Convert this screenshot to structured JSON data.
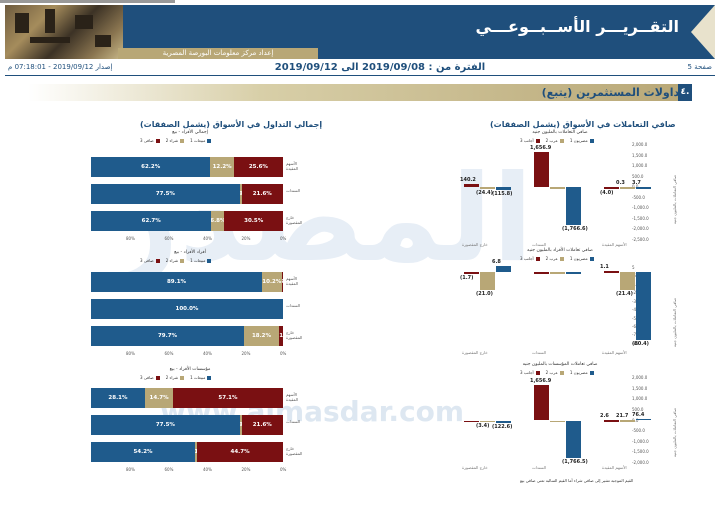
{
  "header": {
    "title": "التقــريـــر الأســبــوعـــي",
    "subtitle": "إعداد مركز معلومات البورصة المصرية",
    "page_label": "صفحة 5",
    "issue_label": "إصدار 2019/09/12 - 07:18:01 م",
    "period": "الفترة من : 2019/09/08 الى 2019/09/12"
  },
  "section": {
    "number": "٤.",
    "title": "تداولات المستثمرين  (يتبع)"
  },
  "watermark": {
    "large": "المصدر",
    "url": "www.almasdar.com"
  },
  "left": {
    "title": "إجمالي التداول في الأسواق (يشمل الصفقات)",
    "legend": [
      "صافى 3",
      "شراء 2",
      "مبيعات 1"
    ],
    "axis_ticks": [
      "0%",
      "20%",
      "40%",
      "60%",
      "80%"
    ],
    "row_labels": [
      "الأسهم المقيدة",
      "السندات",
      "خارج المقصورة"
    ],
    "chart_data": [
      {
        "type": "bar",
        "subtitle": "إجمالي الأفراد - بيع",
        "series_names": [
          "مبيعات 1",
          "شراء 2",
          "صافى 3"
        ],
        "rows": [
          {
            "label": "الأسهم المقيدة",
            "values": [
              62.2,
              12.2,
              25.6
            ]
          },
          {
            "label": "السندات",
            "values": [
              77.5,
              0.9,
              21.6
            ]
          },
          {
            "label": "خارج المقصورة",
            "values": [
              62.7,
              6.8,
              30.5
            ]
          }
        ]
      },
      {
        "type": "bar",
        "subtitle": "أفراد الأفراد - بيع",
        "series_names": [
          "مبيعات 1",
          "شراء 2",
          "صافى 3"
        ],
        "rows": [
          {
            "label": "الأسهم المقيدة",
            "values": [
              89.1,
              10.2,
              0.7
            ]
          },
          {
            "label": "السندات",
            "values": [
              100.0,
              0,
              0
            ]
          },
          {
            "label": "خارج المقصورة",
            "values": [
              79.7,
              18.2,
              2.1
            ]
          }
        ]
      },
      {
        "type": "bar",
        "subtitle": "مؤسسات الأفراد - بيع",
        "series_names": [
          "مبيعات 1",
          "شراء 2",
          "صافى 3"
        ],
        "rows": [
          {
            "label": "الأسهم المقيدة",
            "values": [
              28.1,
              14.7,
              57.1
            ]
          },
          {
            "label": "السندات",
            "values": [
              77.5,
              0.9,
              21.6
            ]
          },
          {
            "label": "خارج المقصورة",
            "values": [
              54.2,
              1.1,
              44.7
            ]
          }
        ]
      }
    ]
  },
  "right": {
    "title": "صافي التعاملات في الأسواق (يشمل الصفقات)",
    "legend": [
      "مصريون 1",
      "عرب 2",
      "أجانب 3"
    ],
    "x_labels": [
      "الأسهم المقيدة",
      "السندات",
      "خارج المقصورة"
    ],
    "y_label": "صافي التعاملات بالمليون جنيه",
    "note": "القيم الموجبة تشير إلى صافي شراء أما القيم السالبة تعني صافي بيع",
    "chart_data": [
      {
        "type": "bar",
        "subtitle": "صافي التعاملات بالمليون جنيه",
        "categories": [
          "خارج المقصورة",
          "السندات",
          "الأسهم المقيدة"
        ],
        "series": [
          {
            "name": "مصريون 1",
            "values": [
              -115.8,
              -1766.6,
              3.7
            ]
          },
          {
            "name": "عرب 2",
            "values": [
              -24.4,
              0,
              0.3
            ]
          },
          {
            "name": "أجانب 3",
            "values": [
              140.2,
              1656.9,
              -4.0
            ]
          }
        ],
        "ylim": [
          -2500,
          2000
        ],
        "yticks": [
          2000,
          1500,
          1000,
          500,
          0,
          -500,
          -1000,
          -1500,
          -2000,
          -2500
        ]
      },
      {
        "type": "bar",
        "subtitle": "صافي تعاملات الأفراد بالمليون جنيه",
        "categories": [
          "خارج المقصورة",
          "السندات",
          "الأسهم المقيدة"
        ],
        "series": [
          {
            "name": "مصريون 1",
            "values": [
              6.8,
              0,
              -80.4
            ]
          },
          {
            "name": "عرب 2",
            "values": [
              -21.0,
              0,
              -21.4
            ]
          },
          {
            "name": "أجانب 3",
            "values": [
              -1.7,
              0,
              1.1
            ]
          }
        ],
        "ylim": [
          -90,
          5
        ],
        "yticks": [
          5,
          -5,
          -15,
          -25,
          -35,
          -45,
          -55,
          -65,
          -75,
          -85
        ]
      },
      {
        "type": "bar",
        "subtitle": "صافي تعاملات المؤسسات بالمليون جنيه",
        "categories": [
          "خارج المقصورة",
          "السندات",
          "الأسهم المقيدة"
        ],
        "series": [
          {
            "name": "مصريون 1",
            "values": [
              -122.6,
              -1766.5,
              76.4
            ]
          },
          {
            "name": "عرب 2",
            "values": [
              -3.4,
              0,
              21.7
            ]
          },
          {
            "name": "أجانب 3",
            "values": [
              0,
              1656.9,
              2.6
            ]
          }
        ],
        "ylim": [
          -2000,
          2000
        ],
        "yticks": [
          2000,
          1500,
          1000,
          500,
          0,
          -500,
          -1000,
          -1500,
          -2000
        ]
      }
    ]
  },
  "colors": {
    "primary": "#1f4f7c",
    "sell": "#1f5b8c",
    "buy": "#b8a776",
    "net": "#7a1012"
  }
}
